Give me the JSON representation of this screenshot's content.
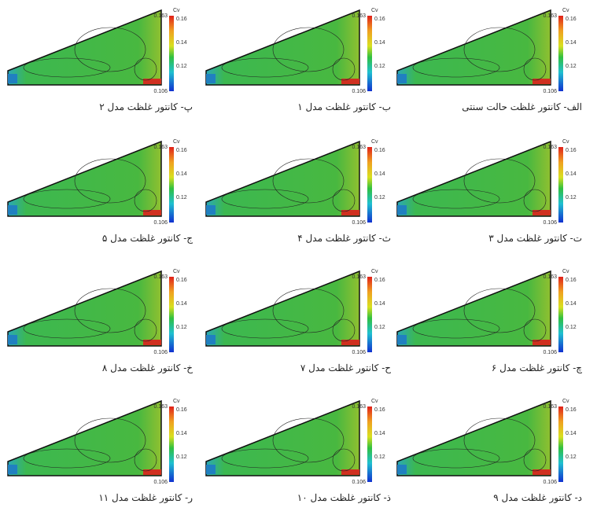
{
  "panels": [
    {
      "caption": "الف- کانتور غلظت حالت سنتی",
      "colorbar": {
        "title": "Cv",
        "max": "0.163",
        "min": "0.106",
        "ticks": [
          "0.16",
          "0.14",
          "0.12"
        ]
      }
    },
    {
      "caption": "ب- کانتور غلظت مدل ۱",
      "colorbar": {
        "title": "Cv",
        "max": "0.163",
        "min": "0.106",
        "ticks": [
          "0.16",
          "0.14",
          "0.12"
        ]
      }
    },
    {
      "caption": "پ- کانتور غلظت مدل ۲",
      "colorbar": {
        "title": "Cv",
        "max": "0.163",
        "min": "0.106",
        "ticks": [
          "0.16",
          "0.14",
          "0.12"
        ]
      }
    },
    {
      "caption": "ت- کانتور غلظت مدل ۳",
      "colorbar": {
        "title": "Cv",
        "max": "0.163",
        "min": "0.106",
        "ticks": [
          "0.16",
          "0.14",
          "0.12"
        ]
      }
    },
    {
      "caption": "ث- کانتور غلظت مدل ۴",
      "colorbar": {
        "title": "Cv",
        "max": "0.163",
        "min": "0.106",
        "ticks": [
          "0.16",
          "0.14",
          "0.12"
        ]
      }
    },
    {
      "caption": "ج- کانتور غلظت مدل ۵",
      "colorbar": {
        "title": "Cv",
        "max": "0.163",
        "min": "0.106",
        "ticks": [
          "0.16",
          "0.14",
          "0.12"
        ]
      }
    },
    {
      "caption": "چ- کانتور غلظت مدل ۶",
      "colorbar": {
        "title": "Cv",
        "max": "0.163",
        "min": "0.106",
        "ticks": [
          "0.16",
          "0.14",
          "0.12"
        ]
      }
    },
    {
      "caption": "ح- کانتور غلظت مدل ۷",
      "colorbar": {
        "title": "Cv",
        "max": "0.163",
        "min": "0.106",
        "ticks": [
          "0.16",
          "0.14",
          "0.12"
        ]
      }
    },
    {
      "caption": "خ- کانتور غلظت مدل ۸",
      "colorbar": {
        "title": "Cv",
        "max": "0.163",
        "min": "0.106",
        "ticks": [
          "0.16",
          "0.14",
          "0.12"
        ]
      }
    },
    {
      "caption": "د- کانتور غلظت مدل ۹",
      "colorbar": {
        "title": "Cv",
        "max": "0.163",
        "min": "0.106",
        "ticks": [
          "0.16",
          "0.14",
          "0.12"
        ]
      }
    },
    {
      "caption": "ذ- کانتور غلظت مدل ۱۰",
      "colorbar": {
        "title": "Cv",
        "max": "0.163",
        "min": "0.106",
        "ticks": [
          "0.16",
          "0.14",
          "0.12"
        ]
      }
    },
    {
      "caption": "ر- کانتور غلظت مدل ۱۱",
      "colorbar": {
        "title": "Cv",
        "max": "0.163",
        "min": "0.106",
        "ticks": [
          "0.16",
          "0.14",
          "0.12"
        ]
      }
    }
  ]
}
